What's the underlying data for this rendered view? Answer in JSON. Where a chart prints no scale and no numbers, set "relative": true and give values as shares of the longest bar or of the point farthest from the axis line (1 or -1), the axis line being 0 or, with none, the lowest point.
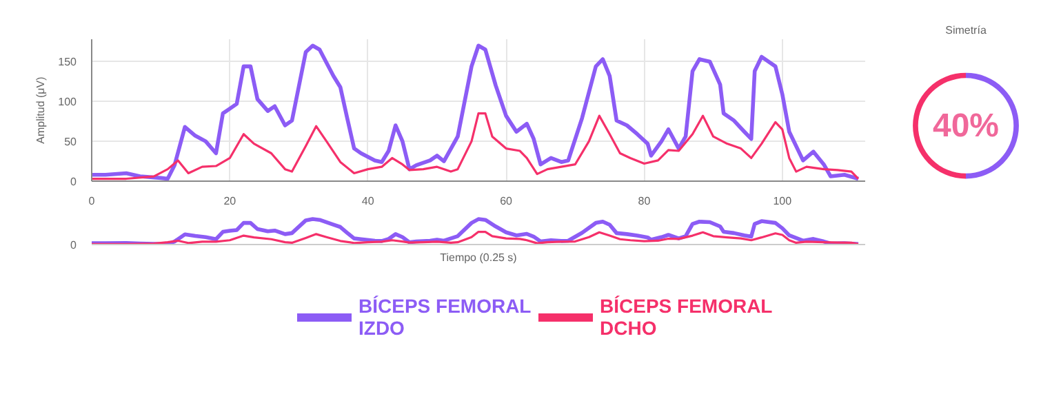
{
  "chart_data": [
    {
      "type": "line",
      "ylabel": "Amplitud (μV)",
      "xlim": [
        0,
        112
      ],
      "ylim": [
        0,
        178
      ],
      "xticks": [
        0,
        20,
        40,
        60,
        80,
        100
      ],
      "yticks": [
        0,
        50,
        100,
        150
      ],
      "grid": true,
      "legend": "bottom",
      "tick_labels": "xy",
      "series": [
        {
          "name": "BÍCEPS FEMORAL IZDO",
          "color": "#8c5cf5",
          "x": [
            0,
            2,
            5,
            7,
            10,
            11,
            12,
            13.5,
            15,
            16.5,
            18,
            19,
            20,
            21,
            22,
            23,
            24,
            25.5,
            26.5,
            28,
            29,
            31,
            32,
            33,
            35,
            36,
            37,
            38,
            39,
            41,
            42,
            43,
            44,
            45,
            46,
            47,
            49,
            50,
            51,
            53,
            55,
            56,
            57,
            58.5,
            60,
            61.5,
            63,
            64,
            65,
            66.5,
            68,
            69,
            71,
            73,
            74,
            75,
            76,
            77.5,
            79,
            80.5,
            81,
            82.5,
            83.5,
            85,
            86,
            87,
            88,
            89.5,
            91,
            91.5,
            93,
            94.5,
            95.5,
            96,
            97,
            99,
            100,
            101,
            103,
            104.5,
            106,
            107,
            109,
            111
          ],
          "values": [
            8,
            8,
            10,
            6,
            4,
            3,
            20,
            68,
            57,
            50,
            35,
            85,
            91,
            97,
            144,
            144,
            103,
            88,
            94,
            70,
            76,
            162,
            170,
            165,
            132,
            118,
            79,
            41,
            35,
            26,
            24,
            38,
            70,
            50,
            15,
            20,
            26,
            32,
            25,
            56,
            144,
            170,
            165,
            120,
            82,
            62,
            72,
            53,
            21,
            29,
            24,
            26,
            79,
            144,
            153,
            132,
            76,
            70,
            59,
            47,
            32,
            50,
            65,
            41,
            56,
            138,
            153,
            150,
            121,
            85,
            76,
            62,
            53,
            138,
            156,
            144,
            109,
            62,
            26,
            37,
            21,
            6,
            8,
            3
          ]
        },
        {
          "name": "BÍCEPS FEMORAL DCHO",
          "color": "#f5306a",
          "x": [
            0,
            5,
            9,
            11,
            12.5,
            14,
            16,
            18,
            20,
            22,
            23.5,
            26,
            28,
            29,
            31,
            32.5,
            34,
            36,
            38,
            40,
            42,
            43.5,
            45,
            46,
            48,
            50,
            52,
            53,
            55,
            56,
            57,
            58,
            60,
            62,
            63,
            64.5,
            66,
            68,
            70,
            72,
            73.5,
            75,
            76.5,
            78,
            80,
            82,
            83.5,
            85,
            87,
            88.5,
            90,
            92,
            94,
            95.5,
            97,
            99,
            100,
            101,
            102,
            103.5,
            106,
            108,
            110,
            111
          ],
          "values": [
            3,
            3,
            6,
            15,
            26,
            10,
            18,
            19,
            29,
            59,
            47,
            35,
            15,
            12,
            44,
            69,
            50,
            24,
            10,
            15,
            18,
            29,
            21,
            14,
            15,
            18,
            12,
            15,
            50,
            85,
            85,
            56,
            41,
            38,
            29,
            9,
            15,
            18,
            21,
            50,
            82,
            59,
            35,
            29,
            22,
            26,
            39,
            38,
            59,
            82,
            56,
            47,
            41,
            29,
            47,
            74,
            65,
            29,
            12,
            18,
            15,
            14,
            12,
            3
          ]
        }
      ]
    },
    {
      "type": "line",
      "xlabel": "Tiempo (0.25 s)",
      "xlim": [
        0,
        112
      ],
      "relative": true,
      "annotations": [
        "0"
      ],
      "series": [
        {
          "color": "#8c5cf5",
          "x": [
            0,
            2,
            5,
            7,
            10,
            11,
            12,
            13.5,
            15,
            16.5,
            18,
            19,
            20,
            21,
            22,
            23,
            24,
            25.5,
            26.5,
            28,
            29,
            31,
            32,
            33,
            35,
            36,
            37,
            38,
            39,
            41,
            42,
            43,
            44,
            45,
            46,
            47,
            49,
            50,
            51,
            53,
            55,
            56,
            57,
            58.5,
            60,
            61.5,
            63,
            64,
            65,
            66.5,
            68,
            69,
            71,
            73,
            74,
            75,
            76,
            77.5,
            79,
            80.5,
            81,
            82.5,
            83.5,
            85,
            86,
            87,
            88,
            89.5,
            91,
            91.5,
            93,
            94.5,
            95.5,
            96,
            97,
            99,
            100,
            101,
            103,
            104.5,
            106,
            107,
            109,
            111
          ],
          "values": [
            0.05,
            0.05,
            0.06,
            0.04,
            0.02,
            0.02,
            0.12,
            0.4,
            0.34,
            0.29,
            0.21,
            0.5,
            0.54,
            0.57,
            0.85,
            0.85,
            0.61,
            0.52,
            0.55,
            0.41,
            0.45,
            0.95,
            1,
            0.97,
            0.78,
            0.69,
            0.46,
            0.24,
            0.21,
            0.15,
            0.14,
            0.22,
            0.41,
            0.29,
            0.09,
            0.12,
            0.15,
            0.19,
            0.15,
            0.33,
            0.85,
            1,
            0.97,
            0.71,
            0.48,
            0.36,
            0.42,
            0.31,
            0.12,
            0.17,
            0.14,
            0.15,
            0.46,
            0.85,
            0.9,
            0.78,
            0.45,
            0.41,
            0.35,
            0.28,
            0.19,
            0.29,
            0.38,
            0.24,
            0.33,
            0.81,
            0.9,
            0.88,
            0.71,
            0.5,
            0.45,
            0.36,
            0.31,
            0.81,
            0.92,
            0.85,
            0.64,
            0.36,
            0.15,
            0.22,
            0.12,
            0.04,
            0.05,
            0.02
          ]
        },
        {
          "color": "#f5306a",
          "x": [
            0,
            5,
            9,
            11,
            12.5,
            14,
            16,
            18,
            20,
            22,
            23.5,
            26,
            28,
            29,
            31,
            32.5,
            34,
            36,
            38,
            40,
            42,
            43.5,
            45,
            46,
            48,
            50,
            52,
            53,
            55,
            56,
            57,
            58,
            60,
            62,
            63,
            64.5,
            66,
            68,
            70,
            72,
            73.5,
            75,
            76.5,
            78,
            80,
            82,
            83.5,
            85,
            87,
            88.5,
            90,
            92,
            94,
            95.5,
            97,
            99,
            100,
            101,
            102,
            103.5,
            106,
            108,
            110,
            111
          ],
          "values": [
            0.02,
            0.02,
            0.04,
            0.09,
            0.15,
            0.06,
            0.11,
            0.11,
            0.17,
            0.35,
            0.28,
            0.21,
            0.09,
            0.07,
            0.26,
            0.41,
            0.29,
            0.14,
            0.06,
            0.09,
            0.11,
            0.17,
            0.12,
            0.08,
            0.09,
            0.11,
            0.07,
            0.09,
            0.29,
            0.5,
            0.5,
            0.33,
            0.24,
            0.22,
            0.17,
            0.05,
            0.09,
            0.11,
            0.12,
            0.29,
            0.48,
            0.35,
            0.21,
            0.17,
            0.13,
            0.15,
            0.23,
            0.22,
            0.35,
            0.48,
            0.33,
            0.28,
            0.24,
            0.17,
            0.28,
            0.44,
            0.38,
            0.17,
            0.07,
            0.11,
            0.09,
            0.08,
            0.07,
            0.02
          ]
        }
      ]
    },
    {
      "type": "donut",
      "title": "Simetría",
      "categories": [
        null,
        null
      ],
      "values": [
        50,
        50
      ],
      "colors": [
        "#8c5cf5",
        "#f5306a"
      ],
      "annotations": [
        "40%"
      ]
    }
  ]
}
